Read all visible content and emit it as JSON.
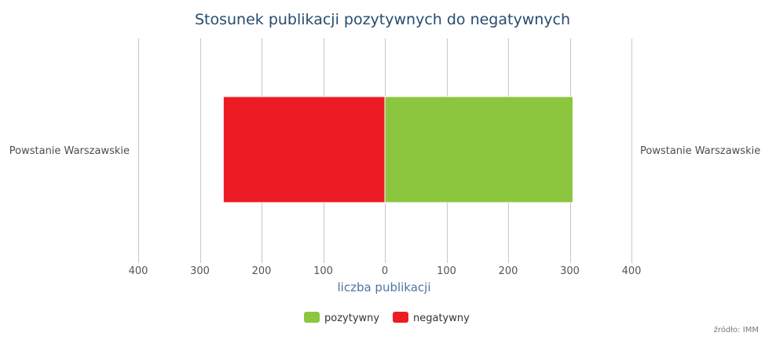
{
  "chart_data": {
    "type": "bar",
    "orientation": "horizontal-diverging",
    "title": "Stosunek publikacji pozytywnych do negatywnych",
    "categories": [
      "Powstanie Warszawskie"
    ],
    "series": [
      {
        "name": "pozytywny",
        "values": [
          305
        ],
        "color": "#8cc63f"
      },
      {
        "name": "negatywny",
        "values": [
          262
        ],
        "color": "#ed1c24"
      }
    ],
    "xlabel": "liczba publikacji",
    "xlim": [
      -400,
      400
    ],
    "tick_values": [
      -400,
      -300,
      -200,
      -100,
      0,
      100,
      200,
      300,
      400
    ],
    "tick_labels": [
      "400",
      "300",
      "200",
      "100",
      "0",
      "100",
      "200",
      "300",
      "400"
    ],
    "grid": true,
    "legend_position": "bottom"
  },
  "credits": "źródło: IMM"
}
